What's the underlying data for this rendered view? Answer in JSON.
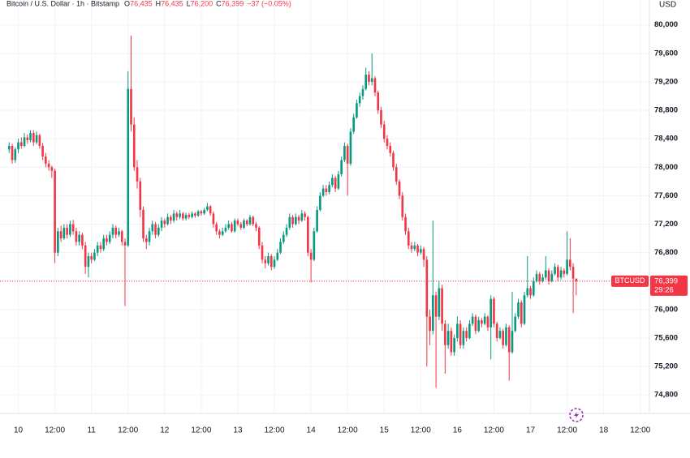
{
  "chart_data": {
    "type": "candlestick",
    "header": {
      "title": "Bitcoin / U.S. Dollar · 1h · Bitstamp",
      "ohlc": [
        {
          "key": "O",
          "value": "76,435"
        },
        {
          "key": "H",
          "value": "76,435"
        },
        {
          "key": "L",
          "value": "76,200"
        },
        {
          "key": "C",
          "value": "76,399"
        }
      ],
      "change": "−37 (−0.05%)"
    },
    "currency": "USD",
    "symbol": "BTCUSD",
    "last_price": {
      "value": 76399,
      "label": "76,399"
    },
    "countdown": "29:26",
    "up_color": "#089981",
    "down_color": "#f23645",
    "grid": true,
    "xlim": [
      -6,
      207
    ],
    "ylim": [
      74540,
      80350
    ],
    "xticks": [
      {
        "value": 0,
        "label": "10"
      },
      {
        "value": 12,
        "label": "12:00"
      },
      {
        "value": 24,
        "label": "11"
      },
      {
        "value": 36,
        "label": "12:00"
      },
      {
        "value": 48,
        "label": "12"
      },
      {
        "value": 60,
        "label": "12:00"
      },
      {
        "value": 72,
        "label": "13"
      },
      {
        "value": 84,
        "label": "12:00"
      },
      {
        "value": 96,
        "label": "14"
      },
      {
        "value": 108,
        "label": "12:00"
      },
      {
        "value": 120,
        "label": "15"
      },
      {
        "value": 132,
        "label": "12:00"
      },
      {
        "value": 144,
        "label": "16"
      },
      {
        "value": 156,
        "label": "12:00"
      },
      {
        "value": 168,
        "label": "17"
      },
      {
        "value": 180,
        "label": "12:00"
      },
      {
        "value": 192,
        "label": "18"
      },
      {
        "value": 204,
        "label": "12:00"
      }
    ],
    "yticks": [
      {
        "value": 74800,
        "label": "74,800"
      },
      {
        "value": 75200,
        "label": "75,200"
      },
      {
        "value": 75600,
        "label": "75,600"
      },
      {
        "value": 76000,
        "label": "76,000"
      },
      {
        "value": 76400,
        "label": "76,400"
      },
      {
        "value": 76800,
        "label": "76,800"
      },
      {
        "value": 77200,
        "label": "77,200"
      },
      {
        "value": 77600,
        "label": "77,600"
      },
      {
        "value": 78000,
        "label": "78,000"
      },
      {
        "value": 78400,
        "label": "78,400"
      },
      {
        "value": 78800,
        "label": "78,800"
      },
      {
        "value": 79200,
        "label": "79,200"
      },
      {
        "value": 79600,
        "label": "79,600"
      },
      {
        "value": 80000,
        "label": "80,000"
      }
    ],
    "x": [
      -3,
      -2,
      -1,
      0,
      1,
      2,
      3,
      4,
      5,
      6,
      7,
      8,
      9,
      10,
      11,
      12,
      13,
      14,
      15,
      16,
      17,
      18,
      19,
      20,
      21,
      22,
      23,
      24,
      25,
      26,
      27,
      28,
      29,
      30,
      31,
      32,
      33,
      34,
      35,
      36,
      37,
      38,
      39,
      40,
      41,
      42,
      43,
      44,
      45,
      46,
      47,
      48,
      49,
      50,
      51,
      52,
      53,
      54,
      55,
      56,
      57,
      58,
      59,
      60,
      61,
      62,
      63,
      64,
      65,
      66,
      67,
      68,
      69,
      70,
      71,
      72,
      73,
      74,
      75,
      76,
      77,
      78,
      79,
      80,
      81,
      82,
      83,
      84,
      85,
      86,
      87,
      88,
      89,
      90,
      91,
      92,
      93,
      94,
      95,
      96,
      97,
      98,
      99,
      100,
      101,
      102,
      103,
      104,
      105,
      106,
      107,
      108,
      109,
      110,
      111,
      112,
      113,
      114,
      115,
      116,
      117,
      118,
      119,
      120,
      121,
      122,
      123,
      124,
      125,
      126,
      127,
      128,
      129,
      130,
      131,
      132,
      133,
      134,
      135,
      136,
      137,
      138,
      139,
      140,
      141,
      142,
      143,
      144,
      145,
      146,
      147,
      148,
      149,
      150,
      151,
      152,
      153,
      154,
      155,
      156,
      157,
      158,
      159,
      160,
      161,
      162,
      163,
      164,
      165,
      166,
      167,
      168,
      169,
      170,
      171,
      172,
      173,
      174,
      175,
      176,
      177,
      178,
      179,
      180,
      181,
      182,
      183
    ],
    "ohlc": [
      [
        78250,
        78350,
        78200,
        78300
      ],
      [
        78300,
        78330,
        78050,
        78100
      ],
      [
        78100,
        78280,
        78060,
        78250
      ],
      [
        78250,
        78400,
        78200,
        78350
      ],
      [
        78350,
        78420,
        78260,
        78300
      ],
      [
        78300,
        78480,
        78280,
        78420
      ],
      [
        78420,
        78460,
        78330,
        78380
      ],
      [
        78380,
        78520,
        78350,
        78480
      ],
      [
        78480,
        78520,
        78300,
        78350
      ],
      [
        78350,
        78500,
        78320,
        78450
      ],
      [
        78450,
        78470,
        78260,
        78300
      ],
      [
        78300,
        78340,
        78100,
        78150
      ],
      [
        78150,
        78200,
        78000,
        78050
      ],
      [
        78050,
        78100,
        77950,
        78000
      ],
      [
        78000,
        78020,
        77850,
        77950
      ],
      [
        77950,
        77980,
        76650,
        76800
      ],
      [
        76800,
        77150,
        76750,
        77100
      ],
      [
        77100,
        77180,
        76950,
        77000
      ],
      [
        77000,
        77200,
        76980,
        77150
      ],
      [
        77150,
        77200,
        77000,
        77050
      ],
      [
        77050,
        77250,
        77020,
        77200
      ],
      [
        77200,
        77260,
        77050,
        77100
      ],
      [
        77100,
        77150,
        76900,
        76950
      ],
      [
        76950,
        77100,
        76900,
        77050
      ],
      [
        77050,
        77080,
        76850,
        76900
      ],
      [
        76900,
        76950,
        76500,
        76600
      ],
      [
        76600,
        76800,
        76450,
        76750
      ],
      [
        76750,
        76800,
        76650,
        76700
      ],
      [
        76700,
        76850,
        76680,
        76800
      ],
      [
        76800,
        76950,
        76750,
        76900
      ],
      [
        76900,
        76950,
        76800,
        76850
      ],
      [
        76850,
        77050,
        76820,
        77000
      ],
      [
        77000,
        77050,
        76900,
        76950
      ],
      [
        76950,
        77100,
        76920,
        77050
      ],
      [
        77050,
        77200,
        77000,
        77150
      ],
      [
        77150,
        77180,
        77000,
        77050
      ],
      [
        77050,
        77150,
        77020,
        77100
      ],
      [
        77100,
        77120,
        76900,
        76950
      ],
      [
        76950,
        77000,
        76050,
        76900
      ],
      [
        76900,
        79350,
        76880,
        79100
      ],
      [
        79100,
        79850,
        78500,
        78600
      ],
      [
        78600,
        78700,
        77950,
        78000
      ],
      [
        78000,
        78100,
        77700,
        77800
      ],
      [
        77800,
        77850,
        77300,
        77400
      ],
      [
        77400,
        77450,
        76950,
        77000
      ],
      [
        77000,
        77050,
        76850,
        76950
      ],
      [
        76950,
        77150,
        76900,
        77100
      ],
      [
        77100,
        77250,
        77050,
        77200
      ],
      [
        77200,
        77230,
        77000,
        77050
      ],
      [
        77050,
        77200,
        77020,
        77150
      ],
      [
        77150,
        77300,
        77100,
        77250
      ],
      [
        77250,
        77280,
        77150,
        77200
      ],
      [
        77200,
        77350,
        77180,
        77300
      ],
      [
        77300,
        77330,
        77200,
        77250
      ],
      [
        77250,
        77400,
        77220,
        77350
      ],
      [
        77350,
        77380,
        77250,
        77300
      ],
      [
        77300,
        77400,
        77270,
        77350
      ],
      [
        77350,
        77370,
        77250,
        77280
      ],
      [
        77280,
        77360,
        77250,
        77330
      ],
      [
        77330,
        77360,
        77270,
        77300
      ],
      [
        77300,
        77380,
        77280,
        77350
      ],
      [
        77350,
        77370,
        77290,
        77320
      ],
      [
        77320,
        77400,
        77300,
        77380
      ],
      [
        77380,
        77400,
        77320,
        77350
      ],
      [
        77350,
        77430,
        77330,
        77400
      ],
      [
        77400,
        77500,
        77380,
        77450
      ],
      [
        77450,
        77470,
        77320,
        77350
      ],
      [
        77350,
        77380,
        77150,
        77200
      ],
      [
        77200,
        77230,
        77050,
        77100
      ],
      [
        77100,
        77130,
        77000,
        77050
      ],
      [
        77050,
        77150,
        77030,
        77100
      ],
      [
        77100,
        77200,
        77080,
        77150
      ],
      [
        77150,
        77250,
        77120,
        77200
      ],
      [
        77200,
        77230,
        77080,
        77100
      ],
      [
        77100,
        77280,
        77080,
        77250
      ],
      [
        77250,
        77280,
        77170,
        77200
      ],
      [
        77200,
        77230,
        77120,
        77150
      ],
      [
        77150,
        77280,
        77130,
        77250
      ],
      [
        77250,
        77270,
        77170,
        77200
      ],
      [
        77200,
        77330,
        77180,
        77300
      ],
      [
        77300,
        77320,
        77170,
        77200
      ],
      [
        77200,
        77230,
        77100,
        77150
      ],
      [
        77150,
        77170,
        76850,
        76900
      ],
      [
        76900,
        76950,
        76650,
        76700
      ],
      [
        76700,
        76750,
        76580,
        76650
      ],
      [
        76650,
        76800,
        76620,
        76750
      ],
      [
        76750,
        76780,
        76550,
        76600
      ],
      [
        76600,
        76750,
        76570,
        76700
      ],
      [
        76700,
        76850,
        76680,
        76800
      ],
      [
        76800,
        77000,
        76780,
        76950
      ],
      [
        76950,
        77100,
        76920,
        77050
      ],
      [
        77050,
        77200,
        77020,
        77150
      ],
      [
        77150,
        77350,
        77120,
        77300
      ],
      [
        77300,
        77330,
        77150,
        77200
      ],
      [
        77200,
        77350,
        77180,
        77300
      ],
      [
        77300,
        77330,
        77200,
        77250
      ],
      [
        77250,
        77400,
        77230,
        77350
      ],
      [
        77350,
        77380,
        77250,
        77300
      ],
      [
        77300,
        77320,
        76750,
        76800
      ],
      [
        76800,
        76850,
        76380,
        76700
      ],
      [
        76700,
        77150,
        76680,
        77100
      ],
      [
        77100,
        77450,
        77080,
        77400
      ],
      [
        77400,
        77650,
        77380,
        77600
      ],
      [
        77600,
        77750,
        77580,
        77700
      ],
      [
        77700,
        77750,
        77600,
        77650
      ],
      [
        77650,
        77800,
        77620,
        77750
      ],
      [
        77750,
        77900,
        77720,
        77850
      ],
      [
        77850,
        77880,
        77650,
        77700
      ],
      [
        77700,
        77950,
        77680,
        77900
      ],
      [
        77900,
        78150,
        77870,
        78100
      ],
      [
        78100,
        78350,
        78070,
        78300
      ],
      [
        78300,
        78330,
        77600,
        78050
      ],
      [
        78050,
        78550,
        78020,
        78500
      ],
      [
        78500,
        78750,
        78470,
        78700
      ],
      [
        78700,
        78950,
        78680,
        78900
      ],
      [
        78900,
        79050,
        78850,
        79000
      ],
      [
        79000,
        79150,
        78950,
        79100
      ],
      [
        79100,
        79400,
        79080,
        79300
      ],
      [
        79300,
        79350,
        79150,
        79200
      ],
      [
        79200,
        79600,
        79150,
        79250
      ],
      [
        79250,
        79280,
        79000,
        79050
      ],
      [
        79050,
        79080,
        78750,
        78800
      ],
      [
        78800,
        78850,
        78550,
        78600
      ],
      [
        78600,
        78650,
        78350,
        78400
      ],
      [
        78400,
        78450,
        78250,
        78300
      ],
      [
        78300,
        78350,
        78150,
        78200
      ],
      [
        78200,
        78230,
        77950,
        78000
      ],
      [
        78000,
        78050,
        77750,
        77800
      ],
      [
        77800,
        77830,
        77550,
        77600
      ],
      [
        77600,
        77650,
        77250,
        77300
      ],
      [
        77300,
        77350,
        77050,
        77100
      ],
      [
        77100,
        77150,
        76850,
        76900
      ],
      [
        76900,
        76950,
        76800,
        76850
      ],
      [
        76850,
        76950,
        76820,
        76900
      ],
      [
        76900,
        76920,
        76750,
        76800
      ],
      [
        76800,
        76900,
        76770,
        76850
      ],
      [
        76850,
        76880,
        76600,
        76700
      ],
      [
        76700,
        76750,
        75200,
        75900
      ],
      [
        75900,
        76000,
        75500,
        75700
      ],
      [
        75700,
        77250,
        75650,
        76200
      ],
      [
        76200,
        76250,
        74900,
        75900
      ],
      [
        75900,
        76400,
        75850,
        76300
      ],
      [
        76300,
        76350,
        75700,
        75800
      ],
      [
        75800,
        75850,
        75100,
        75500
      ],
      [
        75500,
        75800,
        75450,
        75700
      ],
      [
        75700,
        75750,
        75350,
        75400
      ],
      [
        75400,
        75650,
        75350,
        75600
      ],
      [
        75600,
        75900,
        75550,
        75800
      ],
      [
        75800,
        75850,
        75450,
        75500
      ],
      [
        75500,
        75750,
        75450,
        75700
      ],
      [
        75700,
        75750,
        75550,
        75600
      ],
      [
        75600,
        75850,
        75580,
        75800
      ],
      [
        75800,
        75950,
        75770,
        75900
      ],
      [
        75900,
        75930,
        75650,
        75700
      ],
      [
        75700,
        75900,
        75680,
        75850
      ],
      [
        75850,
        75880,
        75750,
        75800
      ],
      [
        75800,
        75950,
        75780,
        75900
      ],
      [
        75900,
        75920,
        75700,
        75750
      ],
      [
        75750,
        76200,
        75300,
        76150
      ],
      [
        76150,
        76180,
        75750,
        75800
      ],
      [
        75800,
        75830,
        75550,
        75600
      ],
      [
        75600,
        75750,
        75580,
        75700
      ],
      [
        75700,
        75730,
        75450,
        75500
      ],
      [
        75500,
        75800,
        75480,
        75750
      ],
      [
        75750,
        75780,
        75000,
        75400
      ],
      [
        75400,
        76250,
        75380,
        75700
      ],
      [
        75700,
        75950,
        75680,
        75900
      ],
      [
        75900,
        76150,
        75870,
        76100
      ],
      [
        76100,
        76130,
        75750,
        75800
      ],
      [
        75800,
        76250,
        75780,
        76200
      ],
      [
        76200,
        76750,
        76170,
        76300
      ],
      [
        76300,
        76330,
        76150,
        76200
      ],
      [
        76200,
        76450,
        76180,
        76400
      ],
      [
        76400,
        76550,
        76380,
        76500
      ],
      [
        76500,
        76530,
        76350,
        76400
      ],
      [
        76400,
        76500,
        76380,
        76450
      ],
      [
        76450,
        76750,
        76420,
        76550
      ],
      [
        76550,
        76580,
        76350,
        76400
      ],
      [
        76400,
        76550,
        76380,
        76500
      ],
      [
        76500,
        76650,
        76480,
        76600
      ],
      [
        76600,
        76630,
        76400,
        76450
      ],
      [
        76450,
        76600,
        76420,
        76550
      ],
      [
        76550,
        76580,
        76450,
        76500
      ],
      [
        76500,
        77100,
        76480,
        76700
      ],
      [
        76700,
        77000,
        76550,
        76600
      ],
      [
        76600,
        76650,
        75950,
        76435
      ],
      [
        76435,
        76435,
        76200,
        76399
      ]
    ]
  }
}
